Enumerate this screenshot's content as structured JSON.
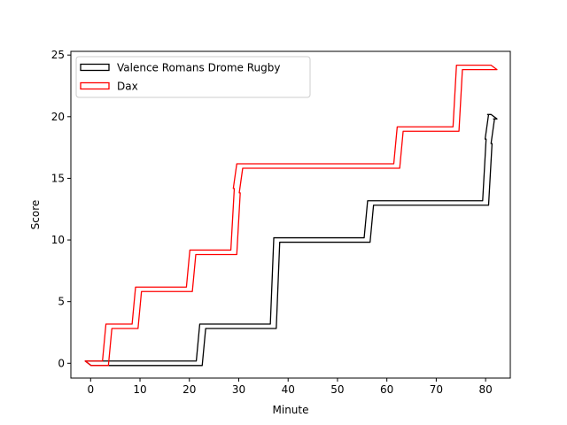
{
  "chart_data": {
    "type": "line",
    "style": "step-outline",
    "xlabel": "Minute",
    "ylabel": "Score",
    "xlim": [
      -4,
      85
    ],
    "ylim": [
      -1.2,
      25.3
    ],
    "x_ticks": [
      0,
      10,
      20,
      30,
      40,
      50,
      60,
      70,
      80
    ],
    "x_tick_labels": [
      "0",
      "10",
      "20",
      "30",
      "40",
      "50",
      "60",
      "70",
      "80"
    ],
    "y_ticks": [
      0,
      5,
      10,
      15,
      20,
      25
    ],
    "y_tick_labels": [
      "0",
      "5",
      "10",
      "15",
      "20",
      "25"
    ],
    "grid": false,
    "legend_position": "top-left",
    "series": [
      {
        "name": "Valence Romans Drome Rugby",
        "color": "#000000",
        "steps": [
          {
            "x": 0,
            "y": 0
          },
          {
            "x": 22,
            "y": 3
          },
          {
            "x": 37,
            "y": 10
          },
          {
            "x": 56,
            "y": 13
          },
          {
            "x": 80,
            "y": 18
          },
          {
            "x": 80.5,
            "y": 20
          },
          {
            "x": 81,
            "y": 20
          }
        ]
      },
      {
        "name": "Dax",
        "color": "#ff0000",
        "steps": [
          {
            "x": 0,
            "y": 0
          },
          {
            "x": 3,
            "y": 3
          },
          {
            "x": 9,
            "y": 6
          },
          {
            "x": 20,
            "y": 9
          },
          {
            "x": 29,
            "y": 14
          },
          {
            "x": 29.5,
            "y": 16
          },
          {
            "x": 62,
            "y": 19
          },
          {
            "x": 74,
            "y": 24
          },
          {
            "x": 81,
            "y": 24
          }
        ]
      }
    ]
  }
}
